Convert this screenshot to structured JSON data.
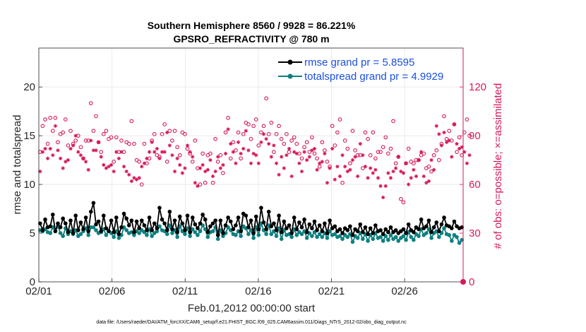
{
  "chart_data": {
    "type": "line",
    "title_line1": "Southern Hemisphere 8560 / 9928 = 86.221%",
    "title_line2": "GPSRO_REFRACTIVITY @ 780 m",
    "xlabel": "Feb.01,2012 00:00:00 start",
    "ylabel_left": "rmse and totalspread",
    "ylabel_right": "# of obs: o=possible; ×=assimilated",
    "footnote": "data file: /Users/raeder/DAI/ATM_forcXX/CAM6_setup/f.e21.FHIST_BGC.f09_025.CAM6assim.011/Diags_NTrS_2012-02/obs_diag_output.nc",
    "x_ticks": [
      "02/01",
      "02/06",
      "02/11",
      "02/16",
      "02/21",
      "02/26"
    ],
    "x_tick_days": [
      0,
      5,
      10,
      15,
      20,
      25
    ],
    "xlim": [
      0,
      29
    ],
    "ylim_left": [
      0,
      24
    ],
    "ylim_right": [
      0,
      144
    ],
    "y_ticks_left": [
      0,
      5,
      10,
      15,
      20
    ],
    "y_ticks_right": [
      0,
      30,
      60,
      90,
      120
    ],
    "colors": {
      "rmse": "#000000",
      "spread": "#0d8080",
      "obs": "#d6195a",
      "legend_text": "#1a4fe0",
      "title": "#000000"
    },
    "legend": [
      {
        "name": "rmse grand pr = 5.8595",
        "series": "rmse"
      },
      {
        "name": "totalspread grand pr = 4.9929",
        "series": "spread"
      }
    ],
    "series_rmse": [
      6.0,
      5.3,
      6.4,
      5.6,
      5.7,
      6.9,
      5.2,
      6.0,
      5.6,
      6.5,
      6.0,
      5.1,
      6.3,
      5.0,
      6.8,
      5.3,
      6.1,
      5.4,
      6.6,
      5.2,
      7.2,
      8.1,
      5.9,
      6.2,
      5.2,
      6.8,
      5.5,
      5.2,
      6.3,
      5.1,
      6.6,
      4.9,
      5.6,
      7.0,
      6.5,
      5.8,
      6.3,
      5.1,
      6.2,
      5.5,
      6.3,
      5.8,
      5.3,
      6.6,
      5.3,
      6.0,
      5.5,
      7.6,
      6.4,
      6.0,
      5.3,
      7.2,
      5.4,
      6.3,
      5.1,
      6.7,
      6.0,
      5.3,
      6.8,
      5.1,
      6.6,
      5.9,
      5.5,
      6.0,
      6.9,
      6.4,
      5.1,
      5.7,
      6.0,
      6.3,
      4.8,
      6.3,
      5.0,
      5.8,
      6.6,
      6.2,
      5.4,
      5.8,
      6.6,
      5.2,
      7.0,
      6.8,
      5.6,
      6.3,
      5.0,
      6.7,
      5.4,
      7.6,
      6.1,
      5.4,
      7.2,
      5.7,
      6.0,
      5.3,
      6.8,
      5.1,
      6.2,
      5.5,
      5.8,
      5.0,
      6.6,
      5.4,
      6.1,
      5.6,
      6.4,
      5.1,
      5.9,
      5.5,
      6.2,
      5.3,
      5.8,
      5.2,
      6.0,
      5.0,
      6.3,
      5.5,
      5.7,
      5.2,
      5.4,
      5.0,
      5.5,
      5.3,
      5.7,
      4.8,
      5.4,
      5.2,
      5.9,
      5.1,
      5.6,
      4.9,
      5.5,
      5.0,
      5.8,
      5.2,
      5.3,
      4.9,
      5.4,
      5.1,
      5.6,
      5.1,
      5.3,
      5.0,
      5.2,
      5.4,
      5.0,
      5.9,
      5.3,
      5.1,
      5.6,
      5.4,
      6.4,
      5.5,
      5.7,
      6.3,
      5.1,
      5.6,
      6.1,
      5.2,
      5.9,
      6.6,
      5.8,
      5.7,
      5.5,
      6.2,
      5.7,
      5.5,
      5.6
    ],
    "series_spread": [
      5.3,
      5.2,
      5.4,
      5.1,
      5.0,
      5.6,
      5.2,
      5.7,
      5.0,
      4.7,
      5.5,
      4.9,
      5.2,
      4.9,
      5.3,
      4.7,
      4.9,
      5.2,
      5.5,
      4.8,
      5.6,
      5.6,
      5.3,
      5.0,
      5.1,
      5.4,
      4.8,
      5.2,
      5.0,
      4.6,
      5.2,
      4.5,
      4.8,
      5.6,
      5.3,
      5.0,
      5.1,
      4.8,
      5.2,
      5.0,
      5.3,
      5.1,
      4.8,
      5.4,
      4.7,
      5.0,
      5.2,
      5.7,
      5.3,
      5.2,
      4.9,
      5.8,
      5.0,
      5.3,
      4.6,
      5.7,
      5.2,
      4.9,
      5.5,
      4.7,
      5.4,
      5.1,
      4.8,
      5.2,
      5.8,
      5.4,
      4.6,
      5.1,
      5.2,
      5.6,
      4.4,
      5.3,
      4.7,
      5.0,
      5.6,
      5.3,
      4.9,
      4.8,
      5.2,
      4.7,
      5.7,
      5.5,
      4.9,
      5.3,
      4.5,
      5.6,
      4.8,
      6.0,
      5.3,
      4.9,
      5.8,
      4.9,
      5.2,
      4.7,
      5.5,
      4.4,
      5.3,
      4.8,
      4.9,
      4.6,
      5.4,
      4.8,
      5.1,
      4.9,
      5.2,
      4.5,
      5.0,
      4.7,
      5.1,
      4.6,
      4.9,
      4.6,
      5.0,
      4.5,
      5.2,
      4.8,
      4.9,
      4.6,
      4.7,
      4.4,
      4.8,
      4.6,
      4.9,
      4.1,
      4.7,
      4.5,
      5.0,
      4.4,
      4.9,
      4.2,
      4.8,
      4.4,
      5.0,
      4.5,
      4.6,
      4.2,
      4.7,
      4.3,
      4.8,
      4.4,
      4.6,
      4.2,
      4.5,
      4.7,
      4.3,
      5.1,
      4.6,
      4.3,
      4.9,
      4.7,
      5.4,
      4.8,
      5.0,
      5.4,
      4.5,
      5.0,
      5.2,
      4.6,
      5.0,
      5.5,
      4.9,
      4.8,
      4.2,
      4.8,
      4.6,
      4.0,
      4.3
    ],
    "obs_possible": [
      80,
      96,
      100,
      85,
      101,
      93,
      101,
      86,
      91,
      92,
      100,
      84,
      93,
      85,
      87,
      90,
      83,
      76,
      87,
      87,
      110,
      93,
      102,
      86,
      80,
      91,
      93,
      88,
      89,
      74,
      89,
      80,
      87,
      80,
      86,
      85,
      99,
      85,
      75,
      74,
      60,
      85,
      73,
      76,
      87,
      91,
      78,
      77,
      91,
      97,
      74,
      93,
      87,
      93,
      83,
      78,
      92,
      91,
      82,
      79,
      74,
      87,
      70,
      60,
      79,
      61,
      78,
      79,
      61,
      88,
      74,
      78,
      67,
      92,
      101,
      76,
      86,
      81,
      92,
      76,
      91,
      98,
      97,
      88,
      96,
      100,
      84,
      92,
      96,
      113,
      91,
      98,
      80,
      91,
      96,
      88,
      85,
      91,
      80,
      87,
      89,
      85,
      79,
      76,
      83,
      86,
      80,
      89,
      79,
      76,
      71,
      86,
      81,
      74,
      71,
      96,
      84,
      92,
      100,
      61,
      87,
      82,
      73,
      93,
      81,
      78,
      78,
      70,
      92,
      88,
      78,
      92,
      76,
      80,
      80,
      83,
      89,
      79,
      82,
      99,
      73,
      77,
      51,
      49,
      73,
      82,
      74,
      73,
      75,
      75,
      78,
      79,
      70,
      71,
      68,
      78,
      81,
      75,
      85,
      102,
      88,
      93,
      87,
      97,
      80,
      89,
      78,
      92,
      100,
      90
    ],
    "obs_assimilated": [
      68,
      80,
      82,
      76,
      82,
      78,
      96,
      81,
      76,
      70,
      74,
      75,
      82,
      84,
      90,
      80,
      78,
      76,
      74,
      69,
      87,
      81,
      81,
      86,
      77,
      72,
      70,
      71,
      72,
      68,
      80,
      76,
      80,
      71,
      68,
      66,
      62,
      64,
      63,
      64,
      71,
      73,
      76,
      80,
      86,
      80,
      82,
      76,
      80,
      80,
      92,
      84,
      78,
      68,
      76,
      72,
      67,
      70,
      84,
      80,
      77,
      61,
      59,
      70,
      72,
      68,
      69,
      75,
      65,
      68,
      77,
      70,
      72,
      79,
      94,
      85,
      80,
      73,
      86,
      79,
      82,
      93,
      81,
      73,
      79,
      78,
      73,
      86,
      91,
      88,
      85,
      77,
      84,
      73,
      66,
      77,
      70,
      78,
      82,
      65,
      80,
      79,
      73,
      68,
      80,
      75,
      77,
      81,
      82,
      69,
      73,
      74,
      79,
      61,
      70,
      82,
      63,
      71,
      65,
      78,
      71,
      68,
      69,
      75,
      77,
      65,
      85,
      78,
      71,
      64,
      70,
      67,
      69,
      64,
      59,
      52,
      59,
      67,
      64,
      68,
      70,
      77,
      68,
      67,
      73,
      60,
      64,
      69,
      65,
      75,
      80,
      65,
      61,
      62,
      75,
      69,
      96,
      91,
      84,
      92,
      86,
      87,
      77,
      97,
      85,
      82,
      83,
      80,
      73,
      78
    ]
  }
}
